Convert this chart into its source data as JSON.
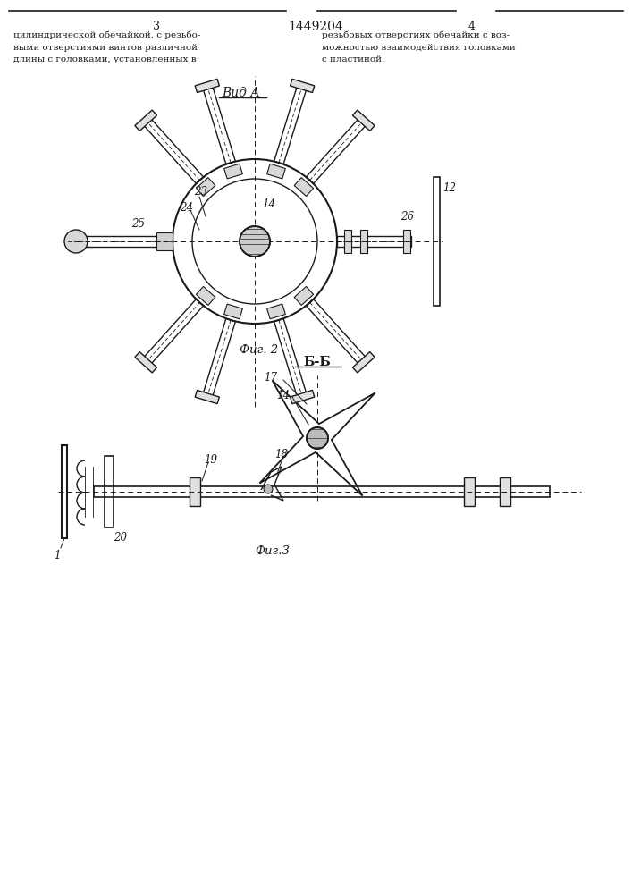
{
  "page_number_left": "3",
  "page_number_center": "1449204",
  "page_number_right": "4",
  "text_left": "цилиндрической обечайкой, с резьбо-\nвыми отверстиями винтов различной\nдлины с головками, установленных в",
  "text_right": "резьбовых отверстиях обечайки с воз-\nможностью взаимодействия головками\nс пластиной.",
  "view_label": "Вид А",
  "fig2_label": "Фиг. 2",
  "fig3_label": "Фиг.3",
  "section_label": "Б-Б",
  "bg_color": "#ffffff",
  "line_color": "#1a1a1a",
  "label_color": "#1a1a1a"
}
